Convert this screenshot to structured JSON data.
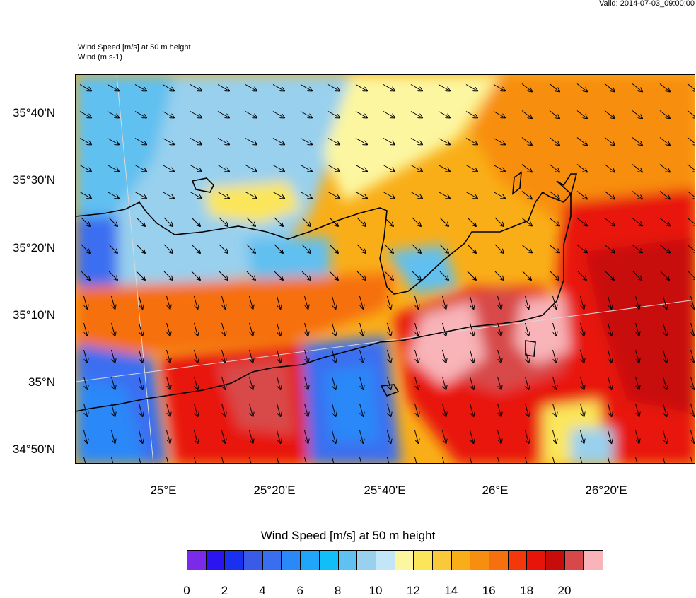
{
  "valid": "Valid: 2014-07-03_09:00:00",
  "header": {
    "line1": "Wind Speed [m/s] at 50 m height",
    "line2": "Wind   (m s-1)"
  },
  "lat_labels": [
    "35°40'N",
    "35°30'N",
    "35°20'N",
    "35°10'N",
    "35°N",
    "34°50'N"
  ],
  "lon_labels": [
    "25°E",
    "25°20'E",
    "25°40'E",
    "26°E",
    "26°20'E"
  ],
  "colorbar": {
    "title": "Wind Speed [m/s] at 50 m height",
    "labels": [
      "0",
      "2",
      "4",
      "6",
      "8",
      "10",
      "12",
      "14",
      "16",
      "18",
      "20"
    ],
    "colors": [
      "#7a2ae8",
      "#2a14f0",
      "#1a30f0",
      "#3a5ae8",
      "#3a6ef0",
      "#2a88f8",
      "#20a6f8",
      "#12bef8",
      "#60c0f0",
      "#98d0ee",
      "#c2e6f8",
      "#fcf6a0",
      "#fbe65a",
      "#f8ca3a",
      "#f9ae18",
      "#f88e10",
      "#f6700e",
      "#f4380c",
      "#e8140a",
      "#c80c0a",
      "#d8484a",
      "#f8b4b8"
    ]
  }
}
